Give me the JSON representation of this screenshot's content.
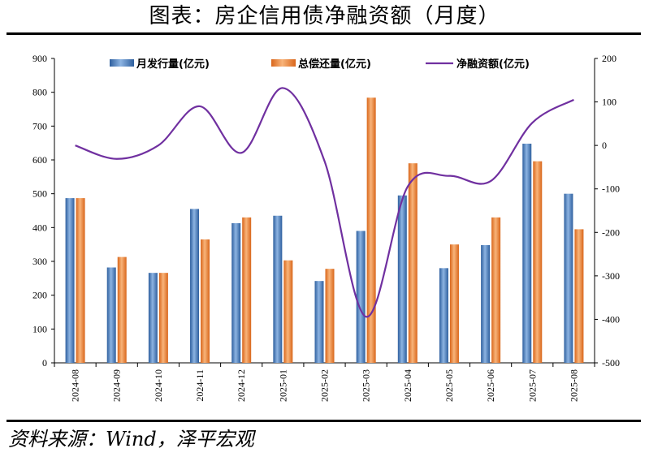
{
  "title": "图表：房企信用债净融资额（月度）",
  "source": "资料来源：Wind，泽平宏观",
  "colors": {
    "issuance": "#4a7ebb",
    "repayment": "#ed8a3a",
    "net": "#7030a0",
    "axis": "#000000"
  },
  "chart_data": {
    "type": "bar+line",
    "categories": [
      "2024-08",
      "2024-09",
      "2024-10",
      "2024-11",
      "2024-12",
      "2025-01",
      "2025-02",
      "2025-03",
      "2025-04",
      "2025-05",
      "2025-06",
      "2025-07",
      "2025-08"
    ],
    "series": [
      {
        "name": "月发行量(亿元)",
        "type": "bar",
        "axis": "left",
        "values": [
          487,
          282,
          266,
          455,
          413,
          435,
          242,
          390,
          495,
          280,
          348,
          648,
          500
        ]
      },
      {
        "name": "总偿还量(亿元)",
        "type": "bar",
        "axis": "left",
        "values": [
          487,
          313,
          266,
          365,
          430,
          303,
          278,
          784,
          590,
          350,
          430,
          596,
          395
        ]
      },
      {
        "name": "净融资额(亿元)",
        "type": "line",
        "axis": "right",
        "values": [
          0,
          -31,
          0,
          90,
          -17,
          132,
          -36,
          -394,
          -95,
          -70,
          -82,
          52,
          105
        ]
      }
    ],
    "y_left": {
      "min": 0,
      "max": 900,
      "step": 100,
      "ticks": [
        "0",
        "100",
        "200",
        "300",
        "400",
        "500",
        "600",
        "700",
        "800",
        "900"
      ]
    },
    "y_right": {
      "min": -500,
      "max": 200,
      "step": 100,
      "ticks": [
        "-500",
        "-400",
        "-300",
        "-200",
        "-100",
        "0",
        "100",
        "200"
      ]
    },
    "grid": false,
    "legend": "top"
  }
}
